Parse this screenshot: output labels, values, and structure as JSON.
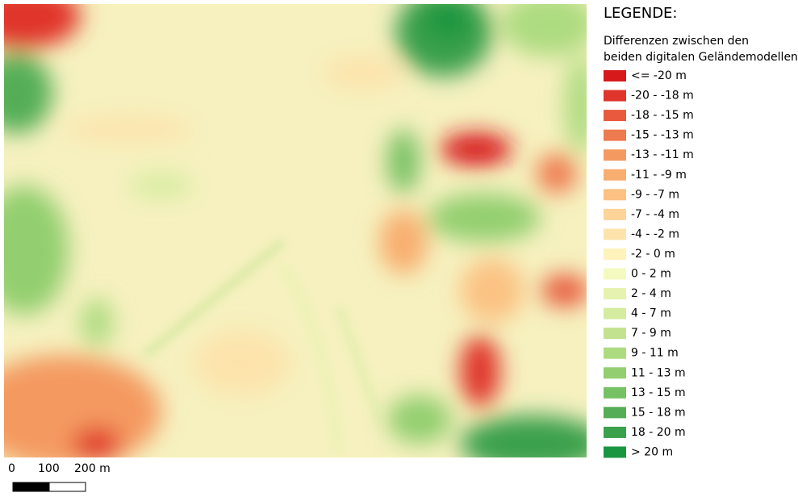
{
  "legend": {
    "title": "LEGENDE:",
    "subtitle_lines": [
      "Differenzen zwischen den",
      "beiden digitalen Geländemodellen"
    ],
    "entries": [
      {
        "label": "<= -20 m",
        "color": "#d7191c"
      },
      {
        "label": "-20 - -18 m",
        "color": "#e0352b"
      },
      {
        "label": "-18 - -15 m",
        "color": "#e85a3e"
      },
      {
        "label": "-15 - -13 m",
        "color": "#ee7a4f"
      },
      {
        "label": "-13 - -11 m",
        "color": "#f49a60"
      },
      {
        "label": "-11 - -9 m",
        "color": "#f8ae70"
      },
      {
        "label": "-9 - -7 m",
        "color": "#fbc283"
      },
      {
        "label": "-7 - -4 m",
        "color": "#fdd398"
      },
      {
        "label": "-4 - -2 m",
        "color": "#fde3ab"
      },
      {
        "label": "-2 - 0 m",
        "color": "#fef2bd"
      },
      {
        "label": "0 - 2 m",
        "color": "#f4f9c0"
      },
      {
        "label": "2 - 4 m",
        "color": "#e6f3b0"
      },
      {
        "label": "4 - 7 m",
        "color": "#d5eca0"
      },
      {
        "label": "7 - 9 m",
        "color": "#c3e28f"
      },
      {
        "label": "9 - 11 m",
        "color": "#addb80"
      },
      {
        "label": "11 - 13 m",
        "color": "#93cf70"
      },
      {
        "label": "13 - 15 m",
        "color": "#76c163"
      },
      {
        "label": "15 - 18 m",
        "color": "#55ae57"
      },
      {
        "label": "18 - 20 m",
        "color": "#3aa04c"
      },
      {
        "label": "> 20 m",
        "color": "#1a9641"
      }
    ]
  },
  "scale_bar": {
    "labels": [
      "0",
      "100",
      "200 m"
    ]
  }
}
